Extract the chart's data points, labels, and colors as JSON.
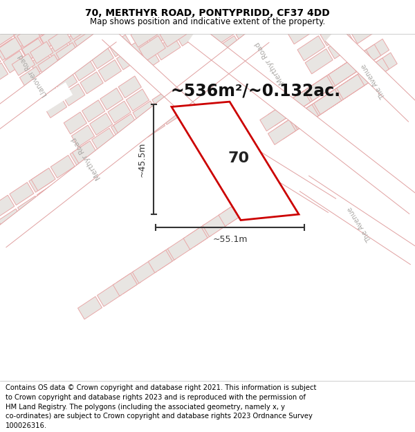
{
  "title_line1": "70, MERTHYR ROAD, PONTYPRIDD, CF37 4DD",
  "title_line2": "Map shows position and indicative extent of the property.",
  "footer_text": "Contains OS data © Crown copyright and database right 2021. This information is subject to Crown copyright and database rights 2023 and is reproduced with the permission of HM Land Registry. The polygons (including the associated geometry, namely x, y co-ordinates) are subject to Crown copyright and database rights 2023 Ordnance Survey 100026316.",
  "area_text": "~536m²/~0.132ac.",
  "label_text": "70",
  "dim_width": "~55.1m",
  "dim_height": "~45.5m",
  "map_bg": "#f5f2f0",
  "block_fill": "#e8e5e2",
  "block_edge_pink": "#e8a8a8",
  "block_edge_gray": "#c8c5c2",
  "highlight_color": "#cc0000",
  "dim_color": "#333333",
  "road_label_color": "#aaa8a5",
  "title_fontsize": 10,
  "subtitle_fontsize": 8.5,
  "footer_fontsize": 7.2,
  "area_fontsize": 17,
  "label_fontsize": 16
}
